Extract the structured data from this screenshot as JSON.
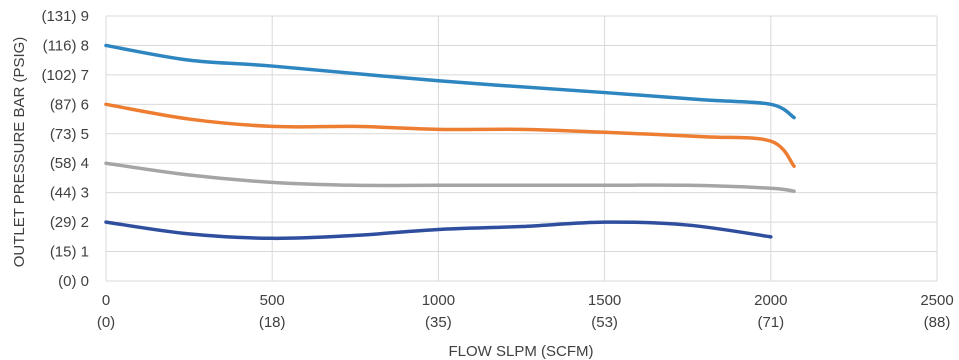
{
  "chart_data": {
    "type": "line",
    "xlabel": "FLOW SLPM (SCFM)",
    "ylabel": "OUTLET PRESSURE BAR (PSIG)",
    "xlim": [
      0,
      2500
    ],
    "ylim": [
      0,
      9
    ],
    "grid": "both",
    "legend": "none",
    "x_ticks": [
      {
        "value": 0,
        "label": "0",
        "sublabel": "(0)"
      },
      {
        "value": 500,
        "label": "500",
        "sublabel": "(18)"
      },
      {
        "value": 1000,
        "label": "1000",
        "sublabel": "(35)"
      },
      {
        "value": 1500,
        "label": "1500",
        "sublabel": "(53)"
      },
      {
        "value": 2000,
        "label": "2000",
        "sublabel": "(71)"
      },
      {
        "value": 2500,
        "label": "2500",
        "sublabel": "(88)"
      }
    ],
    "y_ticks": [
      {
        "value": 0,
        "label": "(0) 0"
      },
      {
        "value": 1,
        "label": "(15) 1"
      },
      {
        "value": 2,
        "label": "(29) 2"
      },
      {
        "value": 3,
        "label": "(44) 3"
      },
      {
        "value": 4,
        "label": "(58) 4"
      },
      {
        "value": 5,
        "label": "(73) 5"
      },
      {
        "value": 6,
        "label": "(87) 6"
      },
      {
        "value": 7,
        "label": "(102) 7"
      },
      {
        "value": 8,
        "label": "(116) 8"
      },
      {
        "value": 9,
        "label": "(131) 9"
      }
    ],
    "series": [
      {
        "color": "#2e86c1",
        "x": [
          0,
          250,
          500,
          1000,
          1500,
          1800,
          2000,
          2070
        ],
        "y": [
          8.0,
          7.5,
          7.3,
          6.8,
          6.4,
          6.15,
          6.0,
          5.55
        ]
      },
      {
        "color": "#ed7d31",
        "x": [
          0,
          250,
          500,
          750,
          1000,
          1250,
          1500,
          1800,
          2000,
          2070
        ],
        "y": [
          6.0,
          5.5,
          5.25,
          5.25,
          5.15,
          5.15,
          5.05,
          4.9,
          4.75,
          3.9
        ]
      },
      {
        "color": "#a5a5a5",
        "x": [
          0,
          250,
          500,
          750,
          1000,
          1250,
          1500,
          1750,
          2000,
          2070
        ],
        "y": [
          4.0,
          3.6,
          3.35,
          3.25,
          3.25,
          3.25,
          3.25,
          3.25,
          3.15,
          3.05
        ]
      },
      {
        "color": "#2f4f9e",
        "x": [
          0,
          250,
          500,
          750,
          1000,
          1250,
          1500,
          1750,
          2000
        ],
        "y": [
          2.0,
          1.6,
          1.45,
          1.55,
          1.75,
          1.85,
          2.0,
          1.9,
          1.5
        ]
      }
    ]
  }
}
